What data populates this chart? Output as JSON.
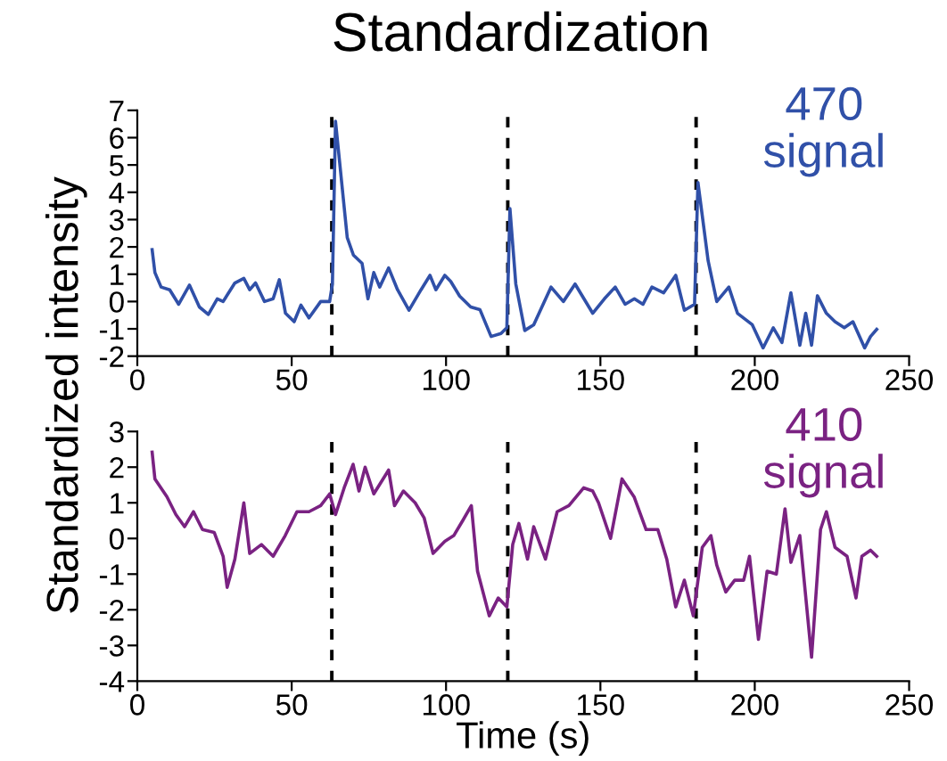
{
  "chart_data": [
    {
      "type": "line",
      "title": "Standardization",
      "ylabel": "Standardized intensity",
      "series": [
        {
          "name": "470\nsignal",
          "color": "#3050a8",
          "x": [
            4.8,
            5.7,
            7.7,
            10.5,
            13.4,
            16.9,
            20.1,
            23,
            25.9,
            27.8,
            31.6,
            34.5,
            36.4,
            38.3,
            41.2,
            44,
            46,
            48,
            50.8,
            53,
            55.6,
            59.4,
            62.3,
            63.2,
            64.2,
            68,
            70,
            72.8,
            74.7,
            76.6,
            78.5,
            81.4,
            84.3,
            88,
            91.9,
            94.8,
            96.7,
            99.6,
            101.5,
            104.4,
            108,
            111,
            114.6,
            117.8,
            119.7,
            120.7,
            122.6,
            125.5,
            128.4,
            134,
            138,
            141.8,
            147.5,
            151.3,
            154.8,
            158,
            161,
            163.8,
            166.7,
            170.5,
            174.4,
            177.2,
            180.5,
            181.6,
            184.9,
            187.7,
            191.6,
            194.4,
            199.2,
            202.7,
            206,
            208.8,
            211.7,
            214.6,
            216.5,
            218.4,
            220.3,
            223.2,
            226,
            229,
            231.8,
            235.6,
            237.5,
            239.5
          ],
          "values": [
            1.9,
            1.06,
            0.53,
            0.43,
            -0.1,
            0.6,
            -0.2,
            -0.47,
            0.1,
            0,
            0.68,
            0.85,
            0.43,
            0.68,
            0,
            0.1,
            0.8,
            -0.43,
            -0.74,
            -0.13,
            -0.6,
            0,
            0,
            0.64,
            6.6,
            2.34,
            1.7,
            1.4,
            0.1,
            1.06,
            0.53,
            1.23,
            0.43,
            -0.32,
            0.43,
            0.96,
            0.43,
            0.96,
            0.74,
            0.2,
            -0.2,
            -0.3,
            -1.28,
            -1.17,
            -0.96,
            3.4,
            0.64,
            -1.06,
            -0.85,
            0.53,
            0,
            0.64,
            -0.43,
            0.1,
            0.53,
            -0.1,
            0.1,
            -0.1,
            0.53,
            0.32,
            0.96,
            -0.32,
            -0.1,
            4.36,
            1.49,
            0,
            0.53,
            -0.43,
            -0.85,
            -1.7,
            -0.96,
            -1.5,
            0.32,
            -1.6,
            -0.43,
            -1.6,
            0.21,
            -0.43,
            -0.74,
            -0.96,
            -0.74,
            -1.7,
            -1.28,
            -1.02
          ]
        }
      ],
      "xlim": [
        0,
        250
      ],
      "xticks": [
        0,
        50,
        100,
        150,
        200,
        250
      ],
      "ylim": [
        -2,
        7
      ],
      "yticks": [
        -2,
        -1,
        0,
        1,
        2,
        3,
        4,
        5,
        6,
        7
      ],
      "ref_lines": [
        {
          "axis": "x",
          "value": 63,
          "color": "#000000",
          "line_style": "dashed"
        },
        {
          "axis": "x",
          "value": 120,
          "color": "#000000",
          "line_style": "dashed"
        },
        {
          "axis": "x",
          "value": 181,
          "color": "#000000",
          "line_style": "dashed"
        }
      ],
      "grid": false,
      "legend": false
    },
    {
      "type": "line",
      "xlabel": "Time (s)",
      "series": [
        {
          "name": "410\nsignal",
          "color": "#7a2282",
          "x": [
            4.8,
            5.7,
            9.6,
            12.5,
            15.3,
            18.2,
            21.1,
            24.9,
            27.8,
            29.1,
            31.6,
            34.5,
            36.4,
            40.2,
            44,
            47.9,
            51.7,
            55.6,
            59.4,
            62.3,
            64.2,
            67,
            69.9,
            71.8,
            73.8,
            76.6,
            81.4,
            83.3,
            86.2,
            90,
            92.9,
            95.8,
            99.6,
            102.5,
            105.4,
            108.2,
            110.2,
            114,
            116.9,
            119.7,
            121.6,
            123.6,
            126.4,
            128.4,
            132.2,
            136,
            139.8,
            144.6,
            147.5,
            149.4,
            153.3,
            157,
            160.9,
            164.8,
            168.6,
            171.5,
            174.4,
            177.2,
            180.1,
            183,
            185.8,
            187.7,
            190.6,
            193.5,
            196.4,
            198.3,
            201.2,
            204,
            207,
            209.8,
            211.7,
            214.6,
            218.4,
            221.3,
            223.2,
            226,
            229.9,
            232.8,
            234.7,
            237.5,
            239.5
          ],
          "values": [
            2.42,
            1.67,
            1.17,
            0.67,
            0.33,
            0.75,
            0.25,
            0.17,
            -0.5,
            -1.37,
            -0.58,
            1,
            -0.42,
            -0.17,
            -0.5,
            0.08,
            0.75,
            0.75,
            0.92,
            1.25,
            0.67,
            1.42,
            2.08,
            1.33,
            2,
            1.25,
            1.92,
            0.92,
            1.33,
            1,
            0.58,
            -0.42,
            -0.08,
            0.08,
            0.5,
            0.92,
            -0.92,
            -2.17,
            -1.67,
            -1.92,
            -0.17,
            0.42,
            -0.58,
            0.33,
            -0.58,
            0.75,
            0.92,
            1.42,
            1.33,
            1,
            0,
            1.67,
            1.17,
            0.25,
            0.25,
            -0.58,
            -1.92,
            -1.17,
            -2.17,
            -0.25,
            0.08,
            -0.75,
            -1.5,
            -1.17,
            -1.17,
            -0.5,
            -2.83,
            -0.92,
            -1,
            0.83,
            -0.67,
            0.08,
            -3.33,
            0.25,
            0.75,
            -0.25,
            -0.5,
            -1.67,
            -0.5,
            -0.33,
            -0.5
          ]
        }
      ],
      "xlim": [
        0,
        250
      ],
      "xticks": [
        0,
        50,
        100,
        150,
        200,
        250
      ],
      "ylim": [
        -4,
        3
      ],
      "yticks": [
        -4,
        -3,
        -2,
        -1,
        0,
        1,
        2,
        3
      ],
      "ref_lines": [
        {
          "axis": "x",
          "value": 63,
          "color": "#000000",
          "line_style": "dashed"
        },
        {
          "axis": "x",
          "value": 120,
          "color": "#000000",
          "line_style": "dashed"
        },
        {
          "axis": "x",
          "value": 181,
          "color": "#000000",
          "line_style": "dashed"
        }
      ],
      "grid": false,
      "legend": false
    }
  ]
}
